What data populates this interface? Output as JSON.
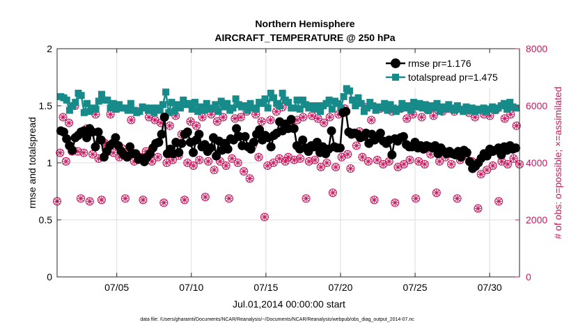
{
  "chart_data": {
    "type": "line",
    "title": "Northern Hemisphere",
    "subtitle": "AIRCRAFT_TEMPERATURE @ 250 hPa",
    "xlabel": "Jul.01,2014 00:00:00 start",
    "ylabel": "rmse and totalspread",
    "y2label": "# of obs: o=possible; ×=assimilated",
    "footnote": "data file: /Users/gharamti/Documents/NCAR/Reanalysis/~/Documents/NCAR/Reanalysis/webpub/obs_diag_output_2014-07.nc",
    "xlim": [
      1,
      32
    ],
    "ylim": [
      0,
      2
    ],
    "y2lim": [
      0,
      8000
    ],
    "xticks": [
      {
        "pos": 5,
        "label": "07/05"
      },
      {
        "pos": 10,
        "label": "07/10"
      },
      {
        "pos": 15,
        "label": "07/15"
      },
      {
        "pos": 20,
        "label": "07/20"
      },
      {
        "pos": 25,
        "label": "07/25"
      },
      {
        "pos": 30,
        "label": "07/30"
      }
    ],
    "yticks": [
      {
        "value": 0,
        "label": "0"
      },
      {
        "value": 0.5,
        "label": "0.5"
      },
      {
        "value": 1,
        "label": "1"
      },
      {
        "value": 1.5,
        "label": "1.5"
      },
      {
        "value": 2,
        "label": "2"
      }
    ],
    "y2ticks": [
      {
        "value": 0,
        "label": "0"
      },
      {
        "value": 2000,
        "label": "2000"
      },
      {
        "value": 4000,
        "label": "4000"
      },
      {
        "value": 6000,
        "label": "6000"
      },
      {
        "value": 8000,
        "label": "8000"
      }
    ],
    "grid": true,
    "legend_position": "top-right",
    "series": [
      {
        "name": "rmse",
        "legend": "rmse pr=1.176",
        "color": "#000000",
        "marker": "circle",
        "values": [
          1.28,
          1.27,
          1.21,
          1.15,
          1.11,
          1.22,
          1.24,
          1.27,
          1.28,
          1.22,
          1.3,
          1.27,
          1.14,
          1.27,
          1.2,
          1.05,
          1.1,
          1.15,
          1.17,
          1.22,
          1.15,
          1.1,
          1.07,
          1.05,
          1.14,
          1.08,
          1.08,
          1.03,
          1.04,
          1.01,
          1.05,
          1.08,
          1.13,
          1.17,
          1.18,
          1.25,
          1.4,
          1.08,
          1.12,
          1.08,
          1.18,
          1.09,
          1.17,
          1.25,
          1.27,
          1.18,
          1.09,
          1.2,
          1.25,
          1.14,
          1.16,
          1.1,
          1.13,
          1.22,
          1.06,
          1.19,
          1.11,
          1.17,
          1.12,
          1.21,
          1.2,
          1.3,
          1.23,
          1.15,
          1.23,
          1.14,
          1.12,
          1.18,
          1.25,
          1.29,
          1.2,
          1.24,
          1.22,
          1.14,
          1.24,
          1.26,
          1.36,
          1.28,
          1.34,
          1.3,
          1.38,
          1.3,
          1.15,
          1.12,
          1.2,
          1.13,
          1.1,
          1.15,
          1.14,
          1.18,
          1.09,
          1.14,
          1.08,
          1.12,
          1.28,
          1.14,
          1.13,
          1.13,
          1.44,
          1.45,
          1.27,
          1.25,
          1.26,
          1.25,
          1.22,
          1.23,
          1.26,
          1.17,
          1.25,
          1.2,
          1.22,
          1.26,
          1.19,
          1.17,
          1.2,
          1.07,
          1.21,
          1.19,
          1.22,
          1.23,
          1.16,
          1.14,
          1.14,
          1.18,
          1.13,
          1.15,
          1.12,
          1.15,
          1.14,
          1.13,
          1.15,
          1.08,
          1.13,
          1.1,
          1.08,
          1.1,
          1.08,
          1.07,
          1.1,
          1.05,
          1.11,
          1.09,
          1.01,
          0.95,
          0.97,
          1.0,
          1.04,
          1.08,
          1.06,
          1.12,
          1.1,
          1.11,
          1.13,
          1.07,
          1.14,
          1.11,
          1.15,
          1.12,
          1.13
        ]
      },
      {
        "name": "totalspread",
        "legend": "totalspread pr=1.475",
        "color": "#178a8a",
        "marker": "square",
        "values": [
          1.58,
          1.57,
          1.55,
          1.46,
          1.5,
          1.53,
          1.61,
          1.59,
          1.44,
          1.52,
          1.45,
          1.48,
          1.47,
          1.54,
          1.6,
          1.55,
          1.55,
          1.48,
          1.52,
          1.47,
          1.51,
          1.48,
          1.48,
          1.46,
          1.52,
          1.46,
          1.44,
          1.45,
          1.49,
          1.48,
          1.46,
          1.48,
          1.44,
          1.48,
          1.46,
          1.51,
          1.62,
          1.44,
          1.53,
          1.45,
          1.51,
          1.48,
          1.55,
          1.51,
          1.52,
          1.47,
          1.53,
          1.45,
          1.49,
          1.46,
          1.52,
          1.47,
          1.48,
          1.51,
          1.45,
          1.54,
          1.49,
          1.52,
          1.46,
          1.48,
          1.56,
          1.51,
          1.49,
          1.5,
          1.46,
          1.52,
          1.48,
          1.47,
          1.53,
          1.52,
          1.56,
          1.48,
          1.61,
          1.57,
          1.52,
          1.5,
          1.61,
          1.55,
          1.53,
          1.48,
          1.48,
          1.55,
          1.47,
          1.55,
          1.51,
          1.48,
          1.5,
          1.47,
          1.5,
          1.45,
          1.5,
          1.52,
          1.55,
          1.47,
          1.54,
          1.52,
          1.48,
          1.58,
          1.65,
          1.63,
          1.55,
          1.5,
          1.57,
          1.52,
          1.45,
          1.48,
          1.53,
          1.5,
          1.46,
          1.49,
          1.48,
          1.52,
          1.46,
          1.51,
          1.48,
          1.45,
          1.47,
          1.52,
          1.48,
          1.5,
          1.46,
          1.53,
          1.49,
          1.52,
          1.48,
          1.51,
          1.46,
          1.5,
          1.48,
          1.52,
          1.45,
          1.49,
          1.47,
          1.51,
          1.48,
          1.46,
          1.5,
          1.47,
          1.45,
          1.49,
          1.46,
          1.48,
          1.45,
          1.47,
          1.46,
          1.48,
          1.45,
          1.47,
          1.49,
          1.46,
          1.48,
          1.5,
          1.52,
          1.47,
          1.53,
          1.49,
          1.48
        ]
      }
    ],
    "obs_series": {
      "name": "# of obs",
      "color": "#c8185e",
      "axis": "right",
      "values": [
        2650,
        4350,
        5600,
        4050,
        5400,
        4400,
        6000,
        4400,
        2750,
        4350,
        5200,
        2650,
        4300,
        5700,
        4150,
        2700,
        4700,
        4600,
        5700,
        4350,
        5900,
        4200,
        4500,
        2750,
        4300,
        5500,
        4050,
        5800,
        4200,
        2700,
        4400,
        5600,
        4050,
        5500,
        4200,
        5400,
        2600,
        4000,
        5300,
        4100,
        5650,
        4250,
        5000,
        2700,
        4000,
        5450,
        3900,
        5300,
        4100,
        5600,
        2800,
        4050,
        5700,
        3750,
        5450,
        4050,
        5600,
        3900,
        2750,
        4150,
        5550,
        4000,
        5600,
        3700,
        5800,
        3450,
        4600,
        5700,
        4200,
        5450,
        2100,
        3900,
        5500,
        4000,
        5800,
        4150,
        5950,
        4050,
        4200,
        5300,
        4100,
        5500,
        4150,
        5600,
        2750,
        4050,
        5650,
        4100,
        5550,
        3850,
        5400,
        4000,
        5600,
        2950,
        3850,
        5700,
        4200,
        5900,
        4300,
        3800,
        5050,
        4600,
        5100,
        4200,
        5950,
        4050,
        5500,
        2700,
        4100,
        5900,
        3950,
        5950,
        4050,
        5800,
        2600,
        3850,
        5900,
        3950,
        5550,
        4100,
        5700,
        2750,
        4050,
        5600,
        3950,
        5850,
        4300,
        5650,
        2950,
        4050,
        5800,
        4200,
        5900,
        3950,
        5800,
        2750,
        4100,
        5850,
        4250,
        5750,
        4050,
        5600,
        2400,
        3600,
        5700,
        3750,
        5650,
        3900,
        5850,
        2650,
        4050,
        5550,
        3950,
        5700,
        4150,
        5300,
        3950
      ]
    }
  }
}
